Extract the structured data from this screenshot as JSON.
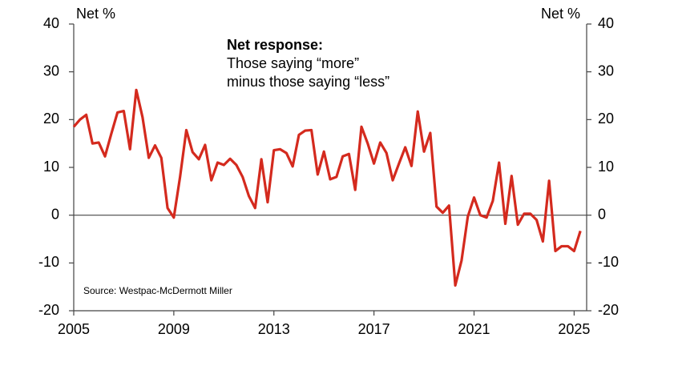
{
  "chart_data": {
    "type": "line",
    "axis_label_left": "Net %",
    "axis_label_right": "Net %",
    "annotation_title": "Net response:",
    "annotation_lines": [
      "Those saying “more”",
      "minus those saying “less”"
    ],
    "source": "Source: Westpac-McDermott Miller",
    "color": "#d42a1e",
    "zero_line": true,
    "x": [
      2005,
      2005.25,
      2005.5,
      2005.75,
      2006,
      2006.25,
      2006.5,
      2006.75,
      2007,
      2007.25,
      2007.5,
      2007.75,
      2008,
      2008.25,
      2008.5,
      2008.75,
      2009,
      2009.25,
      2009.5,
      2009.75,
      2010,
      2010.25,
      2010.5,
      2010.75,
      2011,
      2011.25,
      2011.5,
      2011.75,
      2012,
      2012.25,
      2012.5,
      2012.75,
      2013,
      2013.25,
      2013.5,
      2013.75,
      2014,
      2014.25,
      2014.5,
      2014.75,
      2015,
      2015.25,
      2015.5,
      2015.75,
      2016,
      2016.25,
      2016.5,
      2016.75,
      2017,
      2017.25,
      2017.5,
      2017.75,
      2018,
      2018.25,
      2018.5,
      2018.75,
      2019,
      2019.25,
      2019.5,
      2019.75,
      2020,
      2020.25,
      2020.5,
      2020.75,
      2021,
      2021.25,
      2021.5,
      2021.75,
      2022,
      2022.25,
      2022.5,
      2022.75,
      2023,
      2023.25,
      2023.5,
      2023.75,
      2024,
      2024.25,
      2024.5,
      2024.75,
      2025,
      2025.25
    ],
    "values": [
      18.5,
      20,
      21,
      15,
      15.2,
      12.3,
      17,
      21.5,
      21.8,
      13.8,
      26.2,
      20.5,
      12,
      14.6,
      12,
      1.5,
      -0.5,
      8,
      17.8,
      13.2,
      11.7,
      14.7,
      7.3,
      11,
      10.5,
      11.8,
      10.5,
      8,
      4,
      1.5,
      11.7,
      2.7,
      13.6,
      13.8,
      13,
      10.2,
      16.8,
      17.7,
      17.8,
      8.5,
      13.3,
      7.5,
      8,
      12.3,
      12.8,
      5.3,
      18.5,
      15,
      10.8,
      15.2,
      13,
      7.3,
      10.8,
      14.2,
      10.3,
      21.7,
      13.3,
      17.2,
      1.8,
      0.5,
      2,
      -14.7,
      -9.5,
      -0.3,
      3.7,
      0,
      -0.5,
      3,
      11,
      -1.8,
      8.2,
      -2,
      0.3,
      0.3,
      -1,
      -5.5,
      7.2,
      -7.5,
      -6.5,
      -6.5,
      -7.5,
      -3.3
    ],
    "xlim": [
      2005,
      2025.5
    ],
    "xticks": [
      2005,
      2009,
      2013,
      2017,
      2021,
      2025
    ],
    "ylim": [
      -20,
      40
    ],
    "yticks": [
      -20,
      -10,
      0,
      10,
      20,
      30,
      40
    ],
    "y2lim": [
      -20,
      40
    ],
    "y2ticks": [
      -20,
      -10,
      0,
      10,
      20,
      30,
      40
    ]
  }
}
